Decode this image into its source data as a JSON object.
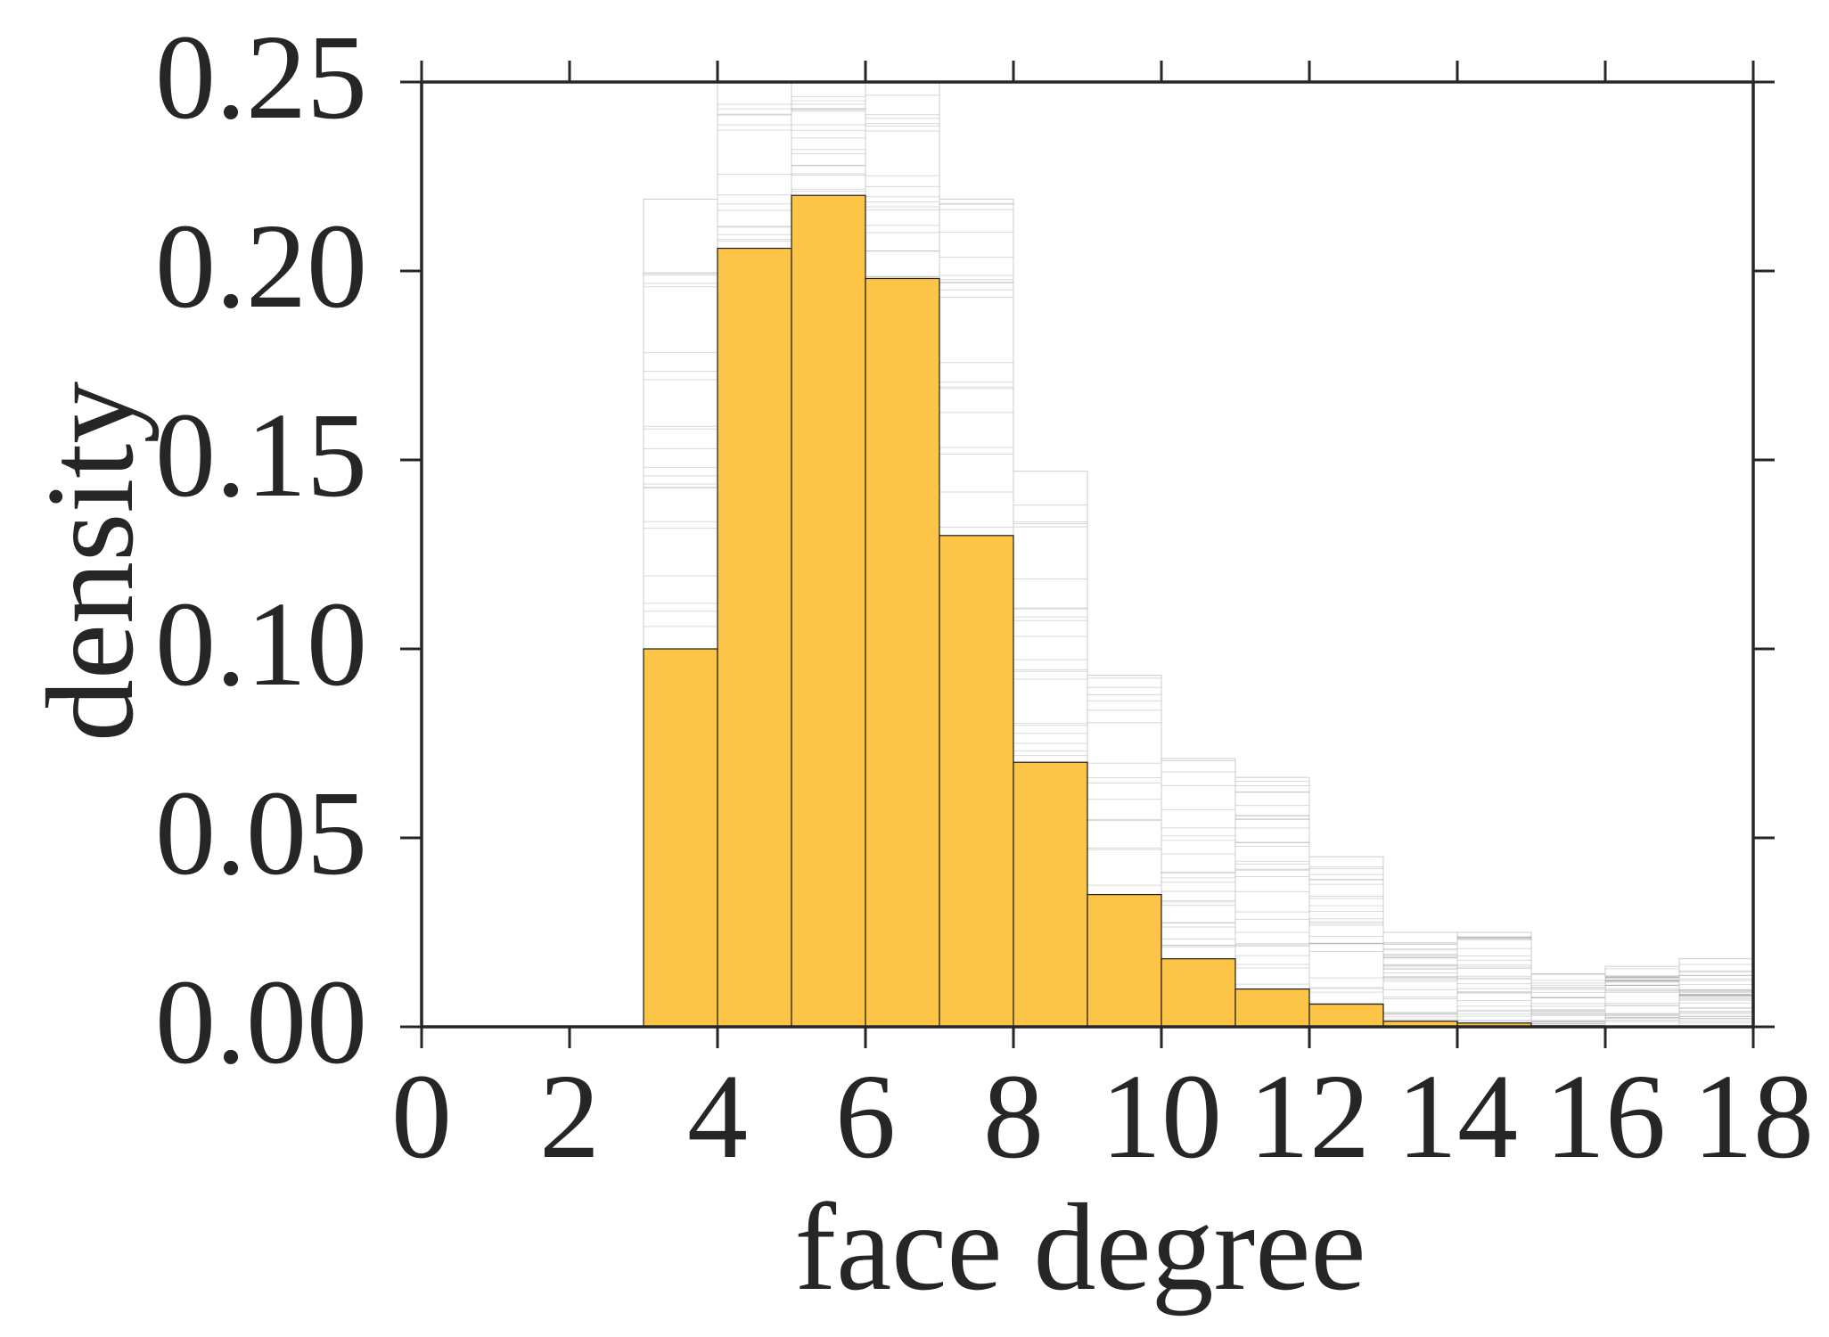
{
  "chart_data": {
    "type": "bar",
    "title": "",
    "xlabel": "face degree",
    "ylabel": "density",
    "xlim": [
      0,
      18
    ],
    "ylim": [
      0,
      0.25
    ],
    "xticks": [
      "0",
      "2",
      "4",
      "6",
      "8",
      "10",
      "12",
      "14",
      "16",
      "18"
    ],
    "yticks": [
      "0.00",
      "0.05",
      "0.10",
      "0.15",
      "0.20",
      "0.25"
    ],
    "grid": false,
    "legend": "none",
    "bin_width": 1,
    "bars": [
      {
        "x": 3,
        "value": 0.1
      },
      {
        "x": 4,
        "value": 0.206
      },
      {
        "x": 5,
        "value": 0.22
      },
      {
        "x": 6,
        "value": 0.198
      },
      {
        "x": 7,
        "value": 0.13
      },
      {
        "x": 8,
        "value": 0.07
      },
      {
        "x": 9,
        "value": 0.035
      },
      {
        "x": 10,
        "value": 0.018
      },
      {
        "x": 11,
        "value": 0.01
      },
      {
        "x": 12,
        "value": 0.006
      },
      {
        "x": 13,
        "value": 0.0015
      },
      {
        "x": 14,
        "value": 0.001
      }
    ],
    "sample_range_max": [
      {
        "x": 3,
        "value": 0.219
      },
      {
        "x": 4,
        "value": 0.25
      },
      {
        "x": 5,
        "value": 0.25
      },
      {
        "x": 6,
        "value": 0.25
      },
      {
        "x": 7,
        "value": 0.219
      },
      {
        "x": 8,
        "value": 0.147
      },
      {
        "x": 9,
        "value": 0.093
      },
      {
        "x": 10,
        "value": 0.071
      },
      {
        "x": 11,
        "value": 0.066
      },
      {
        "x": 12,
        "value": 0.045
      },
      {
        "x": 13,
        "value": 0.025
      },
      {
        "x": 14,
        "value": 0.025
      },
      {
        "x": 15,
        "value": 0.014
      },
      {
        "x": 16,
        "value": 0.016
      },
      {
        "x": 17,
        "value": 0.018
      }
    ],
    "colors": {
      "bar_fill": "#fcc547",
      "bar_edge": "#1a1a1a",
      "sample_lines": "#555555",
      "axis": "#262626"
    }
  }
}
